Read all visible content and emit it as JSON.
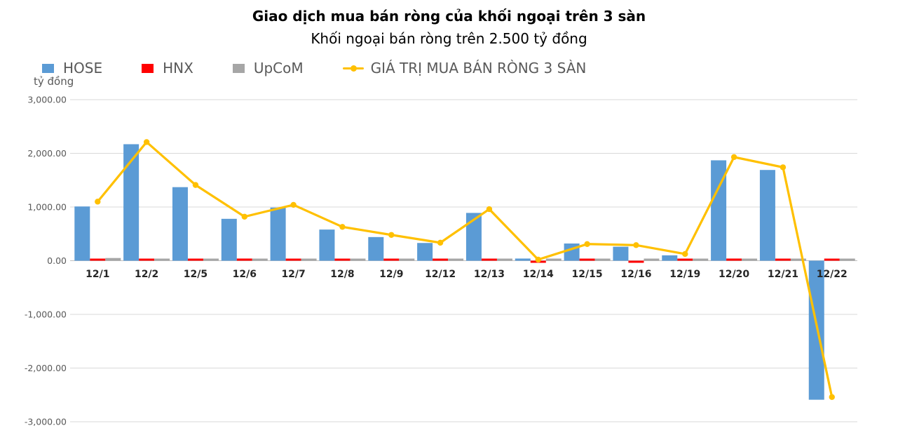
{
  "title": "Giao dịch mua bán ròng của khối ngoại trên 3 sàn",
  "subtitle": "Khối ngoại bán ròng trên 2.500 tỷ đồng",
  "axis_unit_label": "tỷ đồng",
  "colors": {
    "hose": "#5B9BD5",
    "hnx": "#FF0000",
    "upcom": "#A6A6A6",
    "total_line": "#FFC000",
    "gridline": "#D9D9D9",
    "zero_axis": "#BFBFBF",
    "axis_text": "#595959",
    "category_text": "#262626",
    "background": "#FFFFFF"
  },
  "legend": [
    {
      "label": "HOSE",
      "color": "#5B9BD5",
      "marker": "square"
    },
    {
      "label": "HNX",
      "color": "#FF0000",
      "marker": "square"
    },
    {
      "label": "UpCoM",
      "color": "#A6A6A6",
      "marker": "square"
    },
    {
      "label": "GIÁ TRỊ MUA BÁN RÒNG 3 SÀN",
      "color": "#FFC000",
      "marker": "line"
    }
  ],
  "chart_data": {
    "type": "bar",
    "subtype": "grouped-bars-with-line-overlay",
    "title": "Giao dịch mua bán ròng của khối ngoại trên 3 sàn",
    "subtitle": "Khối ngoại bán ròng trên 2.500 tỷ đồng",
    "xlabel": "",
    "ylabel": "tỷ đồng",
    "ylim": [
      -3000,
      3000
    ],
    "ytick_step": 1000,
    "ytick_values": [
      3000,
      2000,
      1000,
      0,
      -1000,
      -2000,
      -3000
    ],
    "ytick_labels": [
      "3,000.00",
      "2,000.00",
      "1,000.00",
      "0.00",
      "-1,000.00",
      "-2,000.00",
      "-3,000.00"
    ],
    "grid": true,
    "legend_position": "top-left",
    "categories": [
      "12/1",
      "12/2",
      "12/5",
      "12/6",
      "12/7",
      "12/8",
      "12/9",
      "12/12",
      "12/13",
      "12/14",
      "12/15",
      "12/16",
      "12/19",
      "12/20",
      "12/21",
      "12/22"
    ],
    "series": [
      {
        "name": "HOSE",
        "type": "bar",
        "color": "#5B9BD5",
        "values": [
          1010,
          2170,
          1370,
          780,
          990,
          580,
          440,
          330,
          890,
          40,
          320,
          260,
          100,
          1870,
          1690,
          -2590
        ]
      },
      {
        "name": "HNX",
        "type": "bar",
        "color": "#FF0000",
        "values": [
          25,
          30,
          25,
          40,
          25,
          35,
          25,
          15,
          35,
          -15,
          15,
          -15,
          10,
          40,
          25,
          35
        ]
      },
      {
        "name": "UpCoM",
        "type": "bar",
        "color": "#A6A6A6",
        "values": [
          50,
          15,
          10,
          8,
          8,
          8,
          8,
          5,
          8,
          12,
          5,
          5,
          5,
          12,
          8,
          20
        ]
      },
      {
        "name": "GIÁ TRỊ MUA BÁN RÒNG 3 SÀN",
        "type": "line",
        "color": "#FFC000",
        "values": [
          1100,
          2210,
          1410,
          820,
          1040,
          630,
          480,
          335,
          960,
          20,
          310,
          290,
          125,
          1930,
          1740,
          -2540
        ]
      }
    ]
  }
}
